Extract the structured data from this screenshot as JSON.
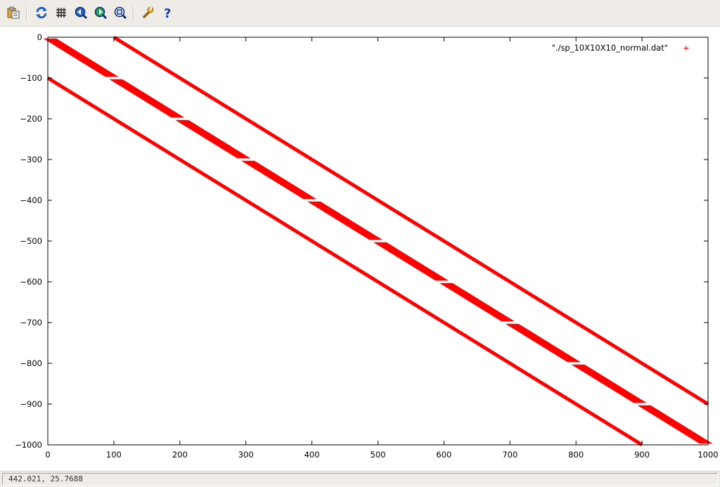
{
  "toolbar": {
    "buttons": [
      {
        "name": "copy-clipboard-button",
        "icon": "clipboard-icon"
      },
      {
        "name": "replot-button",
        "icon": "replot-icon"
      },
      {
        "name": "grid-button",
        "icon": "grid-icon"
      },
      {
        "name": "zoom-previous-button",
        "icon": "zoom-previous-icon"
      },
      {
        "name": "zoom-next-button",
        "icon": "zoom-next-icon"
      },
      {
        "name": "unzoom-button",
        "icon": "unzoom-icon"
      },
      {
        "name": "options-button",
        "icon": "wrench-icon"
      },
      {
        "name": "help-button",
        "icon": "help-icon"
      }
    ]
  },
  "status": {
    "coords": "442.021,  25.7688"
  },
  "colors": {
    "series": "#ff0000",
    "toolbar_bg": "#efebe7"
  },
  "chart_data": {
    "type": "scatter",
    "legend": {
      "label": "\"./sp_10X10X10_normal.dat\"",
      "marker": "+",
      "placement": "top-right"
    },
    "xlim": [
      0,
      1000
    ],
    "ylim": [
      -1000,
      0
    ],
    "x_ticks": [
      0,
      100,
      200,
      300,
      400,
      500,
      600,
      700,
      800,
      900,
      1000
    ],
    "y_ticks": [
      0,
      -100,
      -200,
      -300,
      -400,
      -500,
      -600,
      -700,
      -800,
      -900,
      -1000
    ],
    "x_tick_labels": [
      "0",
      "100",
      "200",
      "300",
      "400",
      "500",
      "600",
      "700",
      "800",
      "900",
      "1000"
    ],
    "y_tick_labels": [
      "0",
      "−100",
      "−200",
      "−300",
      "−400",
      "−500",
      "−600",
      "−700",
      "−800",
      "−900",
      "−1000"
    ],
    "grid": false,
    "series": [
      {
        "description": "upper off-diagonal band",
        "x": [
          100,
          1000
        ],
        "y": [
          0,
          -900
        ]
      },
      {
        "description": "main diagonal band (blocks of width 10)",
        "x": [
          0,
          1000
        ],
        "y": [
          0,
          -1000
        ],
        "block_size": 100,
        "band_half_width": 10
      },
      {
        "description": "lower off-diagonal band",
        "x": [
          0,
          900
        ],
        "y": [
          -100,
          -1000
        ]
      }
    ]
  }
}
